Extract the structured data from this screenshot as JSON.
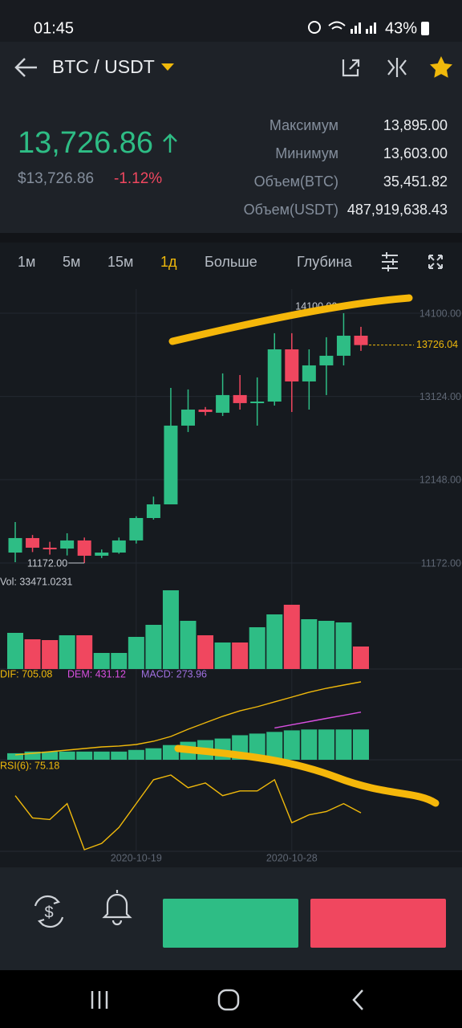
{
  "status": {
    "time": "01:45",
    "battery": "43%"
  },
  "header": {
    "pair": "BTC / USDT"
  },
  "ticker": {
    "price": "13,726.86",
    "price_usd": "$13,726.86",
    "change": "-1.12%",
    "stats": [
      {
        "label": "Максимум",
        "value": "13,895.00"
      },
      {
        "label": "Минимум",
        "value": "13,603.00"
      },
      {
        "label": "Объем(BTC)",
        "value": "35,451.82"
      },
      {
        "label": "Объем(USDT)",
        "value": "487,919,638.43"
      }
    ]
  },
  "tabs": [
    "1м",
    "5м",
    "15м",
    "1д",
    "Больше",
    "Глубина"
  ],
  "indicators": {
    "vol": "Vol: 33471.0231",
    "dif": "DIF: 705.08",
    "dem": "DEM: 431.12",
    "macd": "MACD: 273.96",
    "rsi": "RSI(6): 75.18"
  },
  "chart_data": [
    {
      "type": "candlestick",
      "categories": [
        null,
        null,
        null,
        null,
        null,
        null,
        null,
        "2020-10-19",
        null,
        null,
        null,
        null,
        null,
        null,
        null,
        null,
        "2020-10-28",
        null,
        null,
        null,
        null
      ],
      "open": [
        11294,
        11464,
        11351,
        11341,
        11436,
        11257,
        11294,
        11436,
        11699,
        11859,
        12782,
        12970,
        12933,
        13140,
        13046,
        13064,
        13676,
        13300,
        13488,
        13601,
        13836
      ],
      "close": [
        11464,
        11351,
        11341,
        11436,
        11257,
        11294,
        11436,
        11699,
        11859,
        12782,
        12970,
        12942,
        13140,
        13046,
        13064,
        13676,
        13300,
        13488,
        13601,
        13836,
        13726.04
      ],
      "high": [
        11652,
        11500,
        11420,
        11520,
        11470,
        11330,
        11470,
        11720,
        11950,
        13224,
        13206,
        13000,
        13394,
        13375,
        13347,
        13865,
        13865,
        13676,
        13818,
        14100,
        13940
      ],
      "low": [
        11181,
        11300,
        11270,
        11260,
        11172,
        11230,
        11280,
        11400,
        11680,
        11859,
        12707,
        12900,
        12895,
        12970,
        12782,
        13017,
        12942,
        12970,
        13140,
        13488,
        13658
      ],
      "up_color": "#2ebd85",
      "down_color": "#f0475f",
      "ylim": [
        11040,
        14382
      ],
      "yticks": [
        {
          "value": 14100,
          "label": "14100.00"
        },
        {
          "value": 13124,
          "label": "13124.00"
        },
        {
          "value": 12148,
          "label": "12148.00"
        },
        {
          "value": 11172,
          "label": "11172.00"
        }
      ],
      "last": {
        "value": 13726.04,
        "label": "13726.04"
      },
      "high_label": {
        "value": 14100,
        "label": "14100.00"
      },
      "low_label": {
        "value": 11172,
        "label": "11172.00"
      }
    },
    {
      "type": "bar",
      "values": [
        53775,
        44215,
        43020,
        50190,
        50190,
        23900,
        23900,
        47800,
        65725,
        117110,
        71700,
        50190,
        39435,
        39435,
        62140,
        81260,
        95600,
        74090,
        71700,
        69310,
        33471.0231
      ]
    },
    {
      "type": "macd",
      "color": "#2ebd85",
      "hist": [
        59,
        74,
        74,
        74,
        74,
        74,
        74,
        89,
        104,
        133,
        163,
        178,
        192,
        222,
        237,
        252,
        266,
        274,
        274,
        274,
        273.96
      ],
      "dif": [
        44,
        58,
        73,
        87,
        102,
        116,
        124,
        138,
        167,
        211,
        276,
        335,
        393,
        443,
        480,
        524,
        567,
        611,
        647,
        676,
        705.08
      ],
      "dem": [
        null,
        null,
        null,
        null,
        null,
        null,
        null,
        null,
        null,
        null,
        null,
        null,
        null,
        null,
        null,
        288,
        317,
        345,
        374,
        402,
        431.12
      ]
    },
    {
      "type": "line",
      "color": "#f0b90b",
      "values": [
        86,
        72,
        71,
        81,
        52,
        56,
        66,
        81,
        96,
        99,
        91,
        94,
        86,
        89,
        89,
        96,
        69,
        74,
        76,
        81,
        75.18
      ]
    }
  ]
}
